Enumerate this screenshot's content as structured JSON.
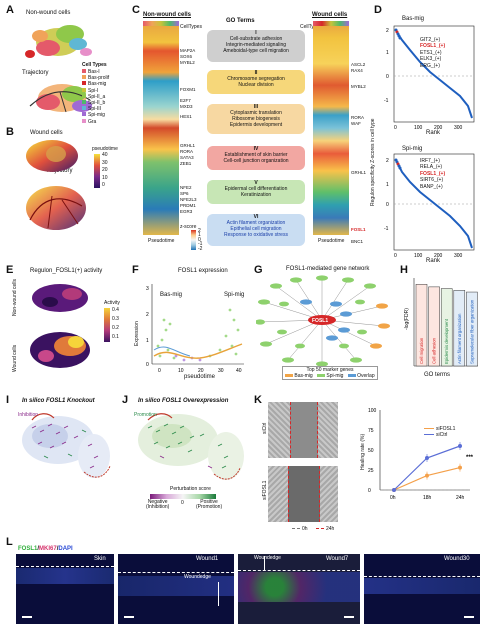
{
  "panels": {
    "A": {
      "label": "A",
      "title_top": "Non-wound cells",
      "title_bottom": "Trajectory",
      "legend_title": "Cell Types",
      "legend": [
        {
          "name": "Bas-I",
          "color": "#e45a6a"
        },
        {
          "name": "Bas-prolif",
          "color": "#f0a35a"
        },
        {
          "name": "Bas-mig",
          "color": "#d62728"
        },
        {
          "name": "Spi-I",
          "color": "#c7c43a"
        },
        {
          "name": "Spi-II_a",
          "color": "#8fc84a"
        },
        {
          "name": "Spi-II_b",
          "color": "#4fb96a"
        },
        {
          "name": "Spi-III",
          "color": "#5fb7d4"
        },
        {
          "name": "Spi-mig",
          "color": "#a06ad4"
        },
        {
          "name": "Gra",
          "color": "#e78fc9"
        }
      ]
    },
    "B": {
      "label": "B",
      "title_top": "Wound cells",
      "title_bottom": "Trajectory",
      "legend_title": "pseudotime",
      "ticks": [
        "40",
        "30",
        "20",
        "10",
        "0"
      ]
    },
    "C": {
      "label": "C",
      "left_header": "Non-wound cells",
      "left_sub": "CellTypes",
      "mid_header": "GO Terms",
      "right_header": "Wound cells",
      "right_sub": "CellTypes",
      "zscore_title": "z-score",
      "zscore_ticks": [
        "2",
        "1",
        "0",
        "-1",
        "-2"
      ],
      "pseudotime_left": "Pseudotime",
      "pseudotime_right": "Pseudotime",
      "groups": [
        {
          "num": "I",
          "color": "#cfcfcf",
          "terms": [
            "Cell-substrate adhesion",
            "Integrin-mediated signaling",
            "Ameboidal-type cell migration"
          ]
        },
        {
          "num": "II",
          "color": "#f6d77a",
          "terms": [
            "Chromosome segregation",
            "Nuclear division"
          ]
        },
        {
          "num": "III",
          "color": "#f7d8a2",
          "terms": [
            "Cytoplasmic translation",
            "Ribosome biogenesis",
            "Epidermis development"
          ]
        },
        {
          "num": "IV",
          "color": "#f2a7a2",
          "terms": [
            "Establishment of skin barrier",
            "Cell-cell junction organization"
          ]
        },
        {
          "num": "V",
          "color": "#c7e6b5",
          "terms": [
            "Epidermal cell differentiation",
            "Keratinization"
          ]
        },
        {
          "num": "VI",
          "color": "#c9ddf2",
          "terms": [
            "Actin filament organization",
            "Epithelial cell migration",
            "Response to oxidative stress"
          ]
        }
      ],
      "left_genes": [
        "MAP2A",
        "SOX6",
        "MYBL2",
        "FOXM1",
        "E2F7",
        "MXD3",
        "HES1",
        "GRHL1",
        "RORA",
        "SATA3",
        "ZEB1",
        "NFE2",
        "SP6",
        "NFE2L3",
        "PRDM1",
        "EGR3"
      ],
      "right_genes": [
        "ASCL2",
        "RAX4",
        "MYBL2",
        "RORA",
        "WAF",
        "GRHL1",
        "FOSL1",
        "BNC1"
      ]
    },
    "D": {
      "label": "D",
      "ylabel": "Regulon specificity Z-scores in cell type",
      "xlabel_top": "Rank",
      "xlabel_bottom": "Rank",
      "top": {
        "title": "Bas-mig",
        "genes": [
          "GIT2_(+)",
          "FOSL1_(+)",
          "ETS1_(+)",
          "ELK3_(+)",
          "ERG_(+)"
        ],
        "highlight": "FOSL1_(+)"
      },
      "bottom": {
        "title": "Spi-mig",
        "genes": [
          "IRF7_(+)",
          "RELA_(+)",
          "FOSL1_(+)",
          "SIRT6_(+)",
          "BANP_(+)"
        ],
        "highlight": "FOSL1_(+)"
      }
    },
    "E": {
      "label": "E",
      "title": "Regulon_FOSL1(+) activity",
      "ylabel_top": "Non-wound cells",
      "ylabel_bottom": "Wound cells",
      "legend_title": "Activity",
      "ticks": [
        "0.4",
        "0.3",
        "0.2",
        "0.1"
      ]
    },
    "F": {
      "label": "F",
      "title": "FOSL1 expression",
      "left_label": "Bas-mig",
      "right_label": "Spi-mig",
      "ylabel": "Expression",
      "xlabel": "pseudotime",
      "xticks": [
        "0",
        "10",
        "20",
        "30",
        "40"
      ],
      "yticks": [
        "3",
        "2",
        "1",
        "0"
      ]
    },
    "G": {
      "label": "G",
      "title": "FOSL1-mediated gene network",
      "center": "FOSL1",
      "legend_title": "Top 50 marker genes",
      "legend": [
        {
          "name": "Bas-mig",
          "color": "#f1a447"
        },
        {
          "name": "Spi-mig",
          "color": "#8ed16d"
        },
        {
          "name": "Overlap",
          "color": "#5b9bd5"
        }
      ]
    },
    "H": {
      "label": "H",
      "ylabel": "-log(FDR)",
      "xlabel": "GO terms",
      "bars": [
        "Cell migration",
        "Cell adhesion",
        "Epidermis development",
        "Actin filament organization",
        "Supramolecular fiber organization"
      ]
    },
    "I": {
      "label": "I",
      "title": "In silico FOSL1 Knockout",
      "annotation": "Inhibition"
    },
    "J": {
      "label": "J",
      "title": "In silico FOSL1 Overexpression",
      "annotation": "Promotion",
      "legend_title": "Perturbation score",
      "neg_label": "Negative",
      "neg_sub": "(Inhibition)",
      "pos_label": "Positive",
      "pos_sub": "(Promotion)",
      "zero": "0"
    },
    "K": {
      "label": "K",
      "rows": [
        "siCtrl",
        "siFOSL1"
      ],
      "cols": [
        "0h",
        "24h"
      ],
      "ylabel": "Healing rate (%)",
      "xticks": [
        "0h",
        "18h",
        "24h"
      ],
      "yticks": [
        "100",
        "75",
        "50",
        "25",
        "0"
      ],
      "sig": "***",
      "series": [
        {
          "name": "siFOSL1",
          "color": "#f4a04a"
        },
        {
          "name": "siCtrl",
          "color": "#5b6ed6"
        }
      ]
    },
    "L": {
      "label": "L",
      "stain_a": "FOSL1",
      "stain_b": "MKI67",
      "stain_c": "DAPI",
      "images": [
        "Skin",
        "Wound1",
        "Wound7",
        "Wound30"
      ],
      "annotation_1": "Woundedge",
      "annotation_2": "Woundedge"
    }
  },
  "chart_data": [
    {
      "type": "line",
      "title": "",
      "xlabel": "",
      "ylabel": "Healing rate (%)",
      "categories": [
        "0h",
        "18h",
        "24h"
      ],
      "ylim": [
        0,
        100
      ],
      "series": [
        {
          "name": "siFOSL1",
          "values": [
            0,
            18,
            28
          ]
        },
        {
          "name": "siCtrl",
          "values": [
            0,
            40,
            55
          ]
        }
      ]
    },
    {
      "type": "bar",
      "title": "",
      "xlabel": "GO terms",
      "ylabel": "-log(FDR)",
      "categories": [
        "Cell migration",
        "Cell adhesion",
        "Epidermis development",
        "Actin filament organization",
        "Supramolecular fiber organization"
      ],
      "values": [
        95,
        92,
        90,
        88,
        86
      ],
      "ylim": [
        0,
        100
      ]
    }
  ]
}
